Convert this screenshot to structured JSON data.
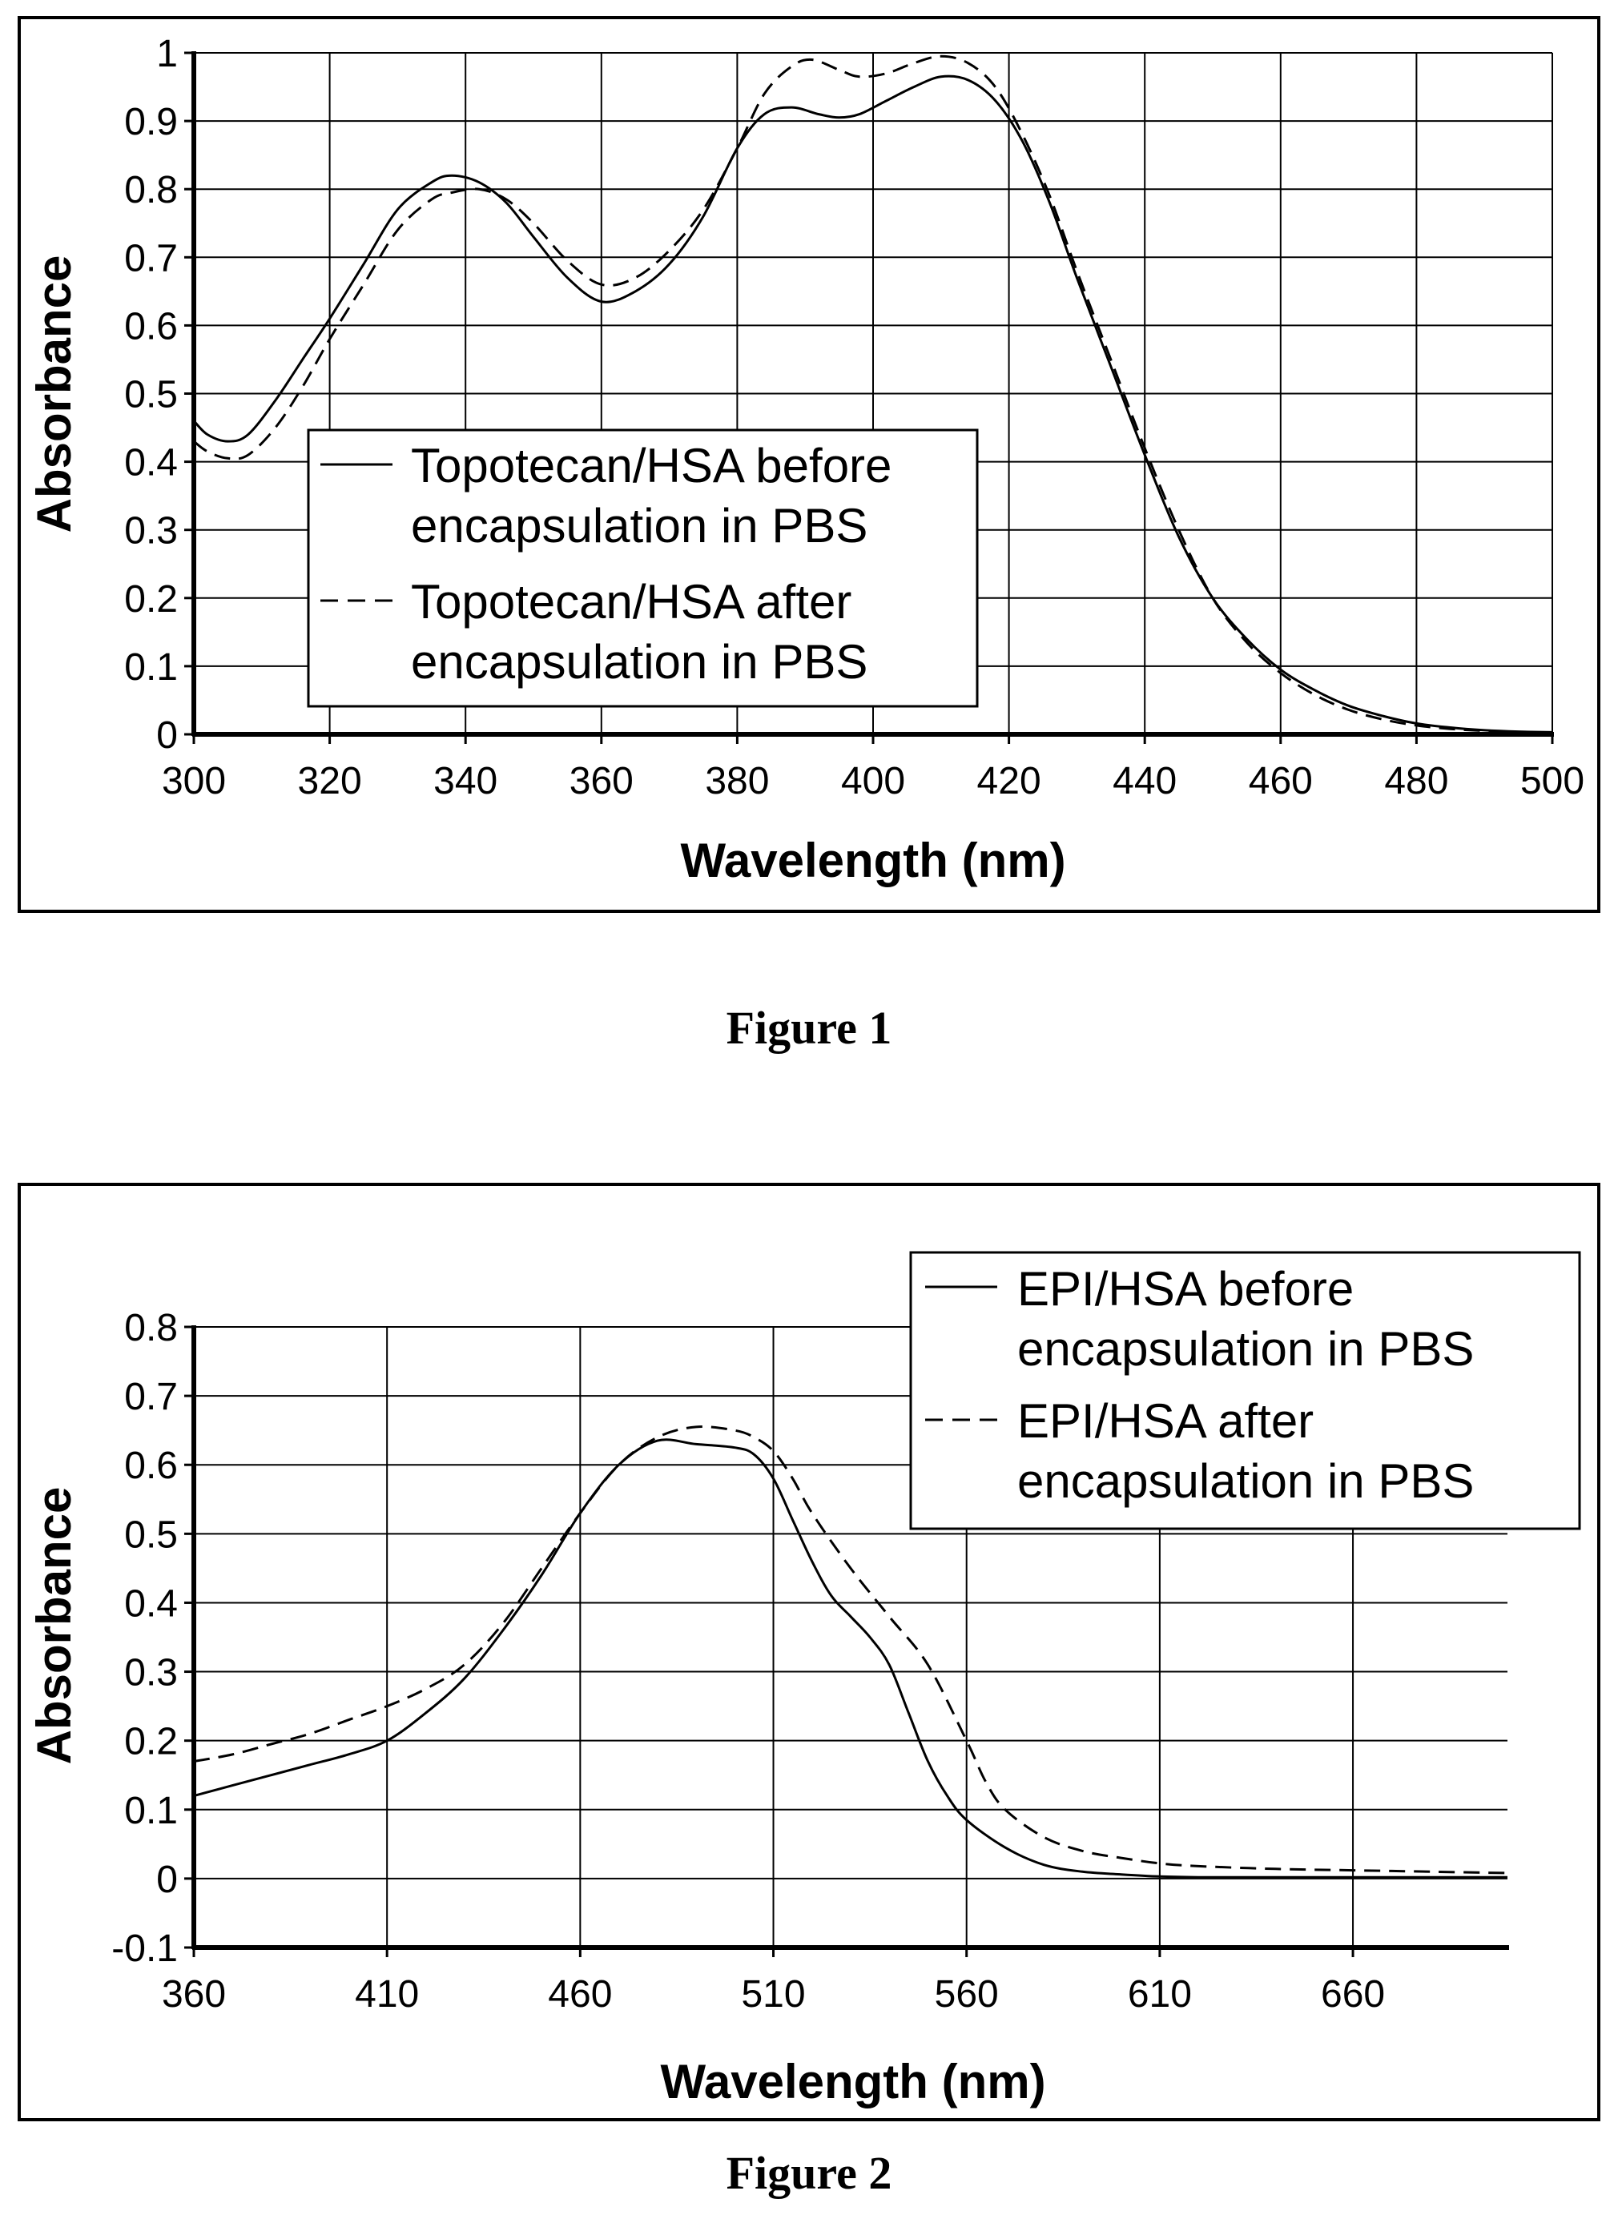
{
  "figures": [
    {
      "caption": "Figure 1"
    },
    {
      "caption": "Figure 2"
    }
  ],
  "chart_data": [
    {
      "type": "line",
      "xlabel": "Wavelength (nm)",
      "ylabel": "Absorbance",
      "xlim": [
        300,
        500
      ],
      "ylim": [
        0,
        1
      ],
      "xticks": [
        "300",
        "320",
        "340",
        "360",
        "380",
        "400",
        "420",
        "440",
        "460",
        "480",
        "500"
      ],
      "yticks": [
        "0",
        "0.1",
        "0.2",
        "0.3",
        "0.4",
        "0.5",
        "0.6",
        "0.7",
        "0.8",
        "0.9",
        "1"
      ],
      "grid": true,
      "legend_position": "center-left",
      "series": [
        {
          "name": "Topotecan/HSA before encapsulation in PBS",
          "style": "solid",
          "x": [
            300,
            302,
            305,
            308,
            312,
            316,
            320,
            325,
            330,
            335,
            338,
            342,
            346,
            350,
            355,
            360,
            365,
            370,
            375,
            380,
            384,
            388,
            392,
            395,
            398,
            402,
            406,
            410,
            414,
            418,
            422,
            426,
            430,
            435,
            440,
            445,
            450,
            455,
            460,
            465,
            470,
            475,
            480,
            485,
            490,
            495,
            500
          ],
          "y": [
            0.46,
            0.44,
            0.43,
            0.44,
            0.49,
            0.55,
            0.61,
            0.69,
            0.77,
            0.81,
            0.82,
            0.81,
            0.78,
            0.73,
            0.67,
            0.635,
            0.65,
            0.69,
            0.76,
            0.86,
            0.91,
            0.92,
            0.91,
            0.905,
            0.91,
            0.93,
            0.95,
            0.965,
            0.96,
            0.93,
            0.87,
            0.78,
            0.67,
            0.54,
            0.41,
            0.29,
            0.2,
            0.14,
            0.095,
            0.065,
            0.042,
            0.027,
            0.016,
            0.01,
            0.006,
            0.004,
            0.003
          ]
        },
        {
          "name": "Topotecan/HSA after encapsulation in PBS",
          "style": "dashed",
          "x": [
            300,
            302,
            305,
            308,
            312,
            316,
            320,
            325,
            330,
            335,
            338,
            342,
            346,
            350,
            355,
            360,
            365,
            370,
            375,
            380,
            384,
            388,
            391,
            395,
            398,
            402,
            406,
            410,
            414,
            418,
            422,
            426,
            430,
            435,
            440,
            445,
            450,
            455,
            460,
            465,
            470,
            475,
            480,
            485,
            490,
            495,
            500
          ],
          "y": [
            0.43,
            0.415,
            0.405,
            0.41,
            0.45,
            0.51,
            0.58,
            0.66,
            0.74,
            0.785,
            0.795,
            0.8,
            0.785,
            0.75,
            0.695,
            0.66,
            0.67,
            0.71,
            0.77,
            0.86,
            0.94,
            0.98,
            0.99,
            0.975,
            0.965,
            0.97,
            0.985,
            0.995,
            0.985,
            0.95,
            0.88,
            0.79,
            0.68,
            0.55,
            0.42,
            0.3,
            0.2,
            0.135,
            0.09,
            0.058,
            0.036,
            0.022,
            0.013,
            0.008,
            0.005,
            0.003,
            0.002
          ]
        }
      ]
    },
    {
      "type": "line",
      "xlabel": "Wavelength (nm)",
      "ylabel": "Absorbance",
      "xlim": [
        360,
        700
      ],
      "ylim": [
        -0.1,
        0.8
      ],
      "xticks": [
        "360",
        "410",
        "460",
        "510",
        "560",
        "610",
        "660"
      ],
      "yticks": [
        "-0.1",
        "0",
        "0.1",
        "0.2",
        "0.3",
        "0.4",
        "0.5",
        "0.6",
        "0.7",
        "0.8"
      ],
      "grid": true,
      "legend_position": "top-right",
      "series": [
        {
          "name": "EPI/HSA before encapsulation in PBS",
          "style": "solid",
          "x": [
            360,
            370,
            380,
            390,
            400,
            410,
            420,
            430,
            440,
            450,
            460,
            470,
            480,
            490,
            500,
            505,
            510,
            515,
            520,
            525,
            530,
            535,
            540,
            545,
            550,
            555,
            560,
            570,
            580,
            590,
            600,
            610,
            620,
            640,
            660,
            680,
            700
          ],
          "y": [
            0.12,
            0.135,
            0.15,
            0.165,
            0.18,
            0.2,
            0.24,
            0.29,
            0.36,
            0.44,
            0.53,
            0.6,
            0.635,
            0.63,
            0.625,
            0.615,
            0.58,
            0.52,
            0.46,
            0.41,
            0.38,
            0.35,
            0.31,
            0.24,
            0.17,
            0.12,
            0.085,
            0.045,
            0.02,
            0.01,
            0.006,
            0.003,
            0.002,
            0.002,
            0.002,
            0.002,
            0.002
          ]
        },
        {
          "name": "EPI/HSA after encapsulation in PBS",
          "style": "dashed",
          "x": [
            360,
            370,
            380,
            390,
            400,
            410,
            420,
            430,
            440,
            450,
            460,
            470,
            480,
            490,
            500,
            505,
            510,
            515,
            520,
            530,
            540,
            550,
            560,
            565,
            570,
            580,
            590,
            600,
            610,
            620,
            640,
            660,
            680,
            700
          ],
          "y": [
            0.17,
            0.18,
            0.195,
            0.21,
            0.23,
            0.25,
            0.275,
            0.31,
            0.37,
            0.45,
            0.53,
            0.6,
            0.64,
            0.655,
            0.65,
            0.64,
            0.62,
            0.58,
            0.53,
            0.45,
            0.38,
            0.31,
            0.2,
            0.14,
            0.1,
            0.06,
            0.04,
            0.03,
            0.022,
            0.018,
            0.014,
            0.012,
            0.01,
            0.008
          ]
        }
      ]
    }
  ]
}
